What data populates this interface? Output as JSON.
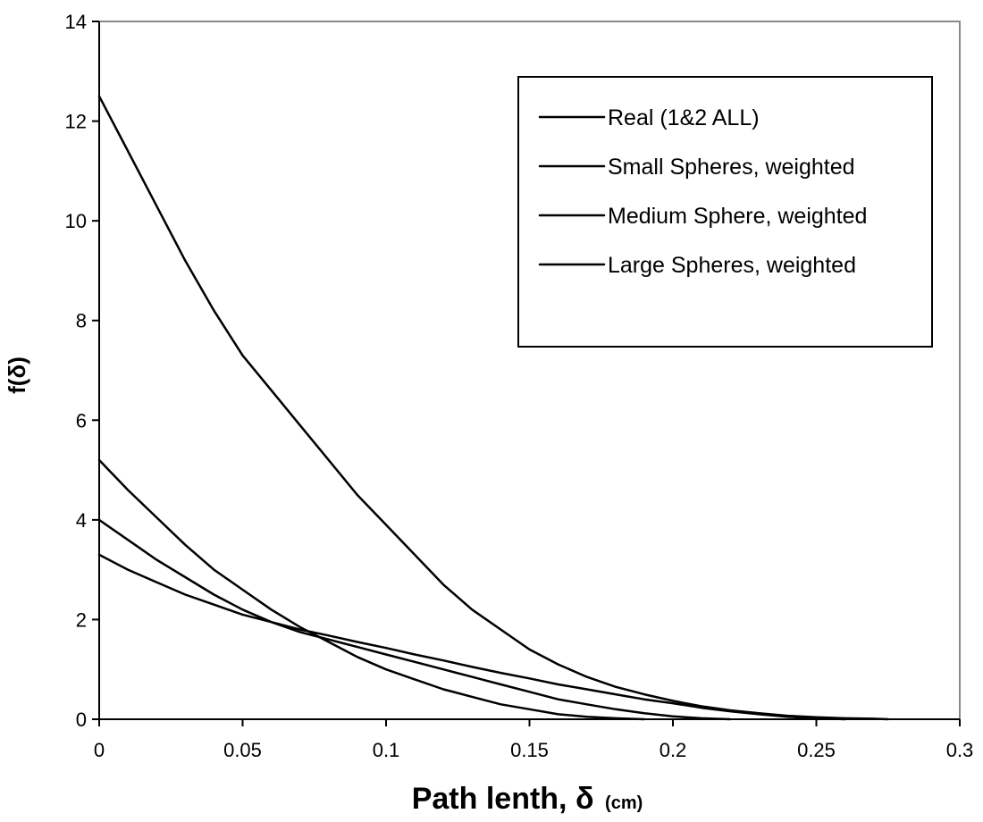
{
  "chart_data": {
    "type": "line",
    "title": "",
    "xlabel_main": "Path lenth, δ",
    "xlabel_unit": "(cm)",
    "ylabel": "f(δ)",
    "xlim": [
      0,
      0.3
    ],
    "ylim": [
      0,
      14
    ],
    "x_ticks": [
      "0",
      "0.05",
      "0.1",
      "0.15",
      "0.2",
      "0.25",
      "0.3"
    ],
    "y_ticks": [
      "0",
      "2",
      "4",
      "6",
      "8",
      "10",
      "12",
      "14"
    ],
    "grid": false,
    "legend_position": "top-right",
    "line_color": "#000000",
    "series": [
      {
        "name": "Real (1&2 ALL)",
        "x": [
          0,
          0.01,
          0.02,
          0.03,
          0.04,
          0.05,
          0.06,
          0.07,
          0.08,
          0.09,
          0.1,
          0.11,
          0.12,
          0.13,
          0.14,
          0.15,
          0.16,
          0.17,
          0.18,
          0.19,
          0.2,
          0.21,
          0.22,
          0.23,
          0.24,
          0.25,
          0.26,
          0.27,
          0.275
        ],
        "y": [
          12.5,
          11.4,
          10.3,
          9.2,
          8.2,
          7.3,
          6.6,
          5.9,
          5.2,
          4.5,
          3.9,
          3.3,
          2.7,
          2.2,
          1.8,
          1.4,
          1.1,
          0.85,
          0.65,
          0.5,
          0.37,
          0.26,
          0.18,
          0.12,
          0.07,
          0.04,
          0.02,
          0.01,
          0
        ]
      },
      {
        "name": "Small Spheres, weighted",
        "x": [
          0,
          0.01,
          0.02,
          0.03,
          0.04,
          0.05,
          0.06,
          0.07,
          0.08,
          0.09,
          0.1,
          0.11,
          0.12,
          0.13,
          0.14,
          0.15,
          0.16,
          0.17,
          0.18,
          0.19
        ],
        "y": [
          5.2,
          4.6,
          4.05,
          3.5,
          3.0,
          2.6,
          2.2,
          1.85,
          1.55,
          1.25,
          1.0,
          0.8,
          0.6,
          0.45,
          0.3,
          0.2,
          0.1,
          0.05,
          0.02,
          0
        ]
      },
      {
        "name": "Medium Sphere, weighted",
        "x": [
          0,
          0.01,
          0.02,
          0.03,
          0.04,
          0.05,
          0.06,
          0.07,
          0.08,
          0.09,
          0.1,
          0.11,
          0.12,
          0.13,
          0.14,
          0.15,
          0.16,
          0.17,
          0.18,
          0.19,
          0.2,
          0.21,
          0.22
        ],
        "y": [
          4.0,
          3.6,
          3.2,
          2.85,
          2.5,
          2.2,
          1.95,
          1.75,
          1.6,
          1.45,
          1.3,
          1.15,
          1.0,
          0.85,
          0.7,
          0.55,
          0.4,
          0.3,
          0.2,
          0.12,
          0.06,
          0.02,
          0
        ]
      },
      {
        "name": "Large Spheres, weighted",
        "x": [
          0,
          0.01,
          0.02,
          0.03,
          0.04,
          0.05,
          0.06,
          0.07,
          0.08,
          0.09,
          0.1,
          0.11,
          0.12,
          0.13,
          0.14,
          0.15,
          0.16,
          0.17,
          0.18,
          0.19,
          0.2,
          0.21,
          0.22,
          0.23,
          0.24,
          0.25,
          0.26
        ],
        "y": [
          3.3,
          3.0,
          2.75,
          2.5,
          2.3,
          2.1,
          1.95,
          1.8,
          1.68,
          1.55,
          1.43,
          1.3,
          1.18,
          1.05,
          0.93,
          0.82,
          0.7,
          0.6,
          0.5,
          0.4,
          0.32,
          0.23,
          0.16,
          0.1,
          0.05,
          0.02,
          0
        ]
      }
    ]
  }
}
